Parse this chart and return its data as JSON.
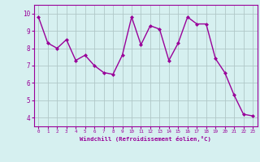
{
  "x": [
    0,
    1,
    2,
    3,
    4,
    5,
    6,
    7,
    8,
    9,
    10,
    11,
    12,
    13,
    14,
    15,
    16,
    17,
    18,
    19,
    20,
    21,
    22,
    23
  ],
  "y": [
    9.8,
    8.3,
    8.0,
    8.5,
    7.3,
    7.6,
    7.0,
    6.6,
    6.5,
    7.6,
    9.8,
    8.2,
    9.3,
    9.1,
    7.3,
    8.3,
    9.8,
    9.4,
    9.4,
    7.4,
    6.6,
    5.3,
    4.2,
    4.1
  ],
  "line_color": "#990099",
  "marker": "D",
  "marker_size": 2.0,
  "bg_color": "#d6f0f0",
  "grid_color": "#b0c8c8",
  "xlabel": "Windchill (Refroidissement éolien,°C)",
  "xlabel_color": "#990099",
  "tick_color": "#990099",
  "ylim": [
    3.5,
    10.5
  ],
  "xlim": [
    -0.5,
    23.5
  ],
  "yticks": [
    4,
    5,
    6,
    7,
    8,
    9,
    10
  ],
  "xticks": [
    0,
    1,
    2,
    3,
    4,
    5,
    6,
    7,
    8,
    9,
    10,
    11,
    12,
    13,
    14,
    15,
    16,
    17,
    18,
    19,
    20,
    21,
    22,
    23
  ],
  "linewidth": 1.0,
  "spine_color": "#990099",
  "font_family": "monospace"
}
